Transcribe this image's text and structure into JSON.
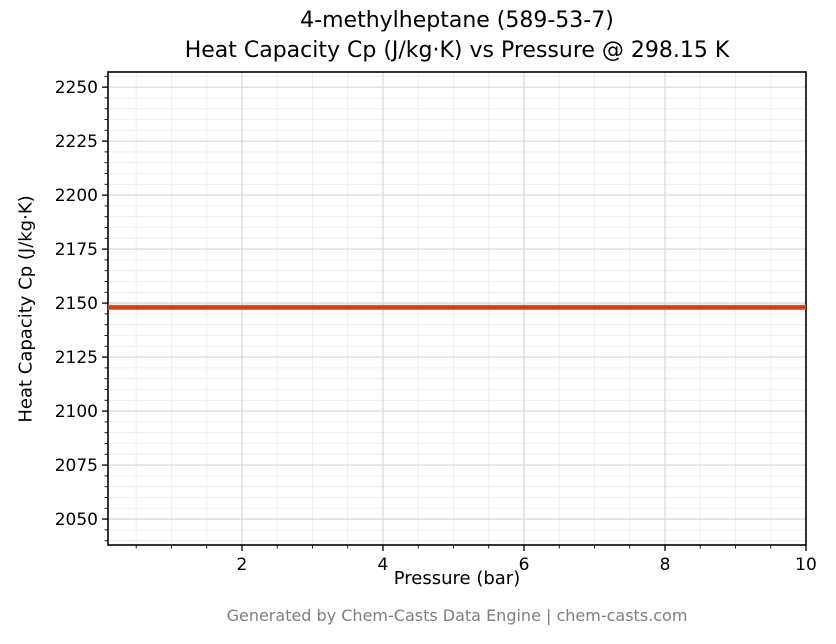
{
  "title_line1": "4-methylheptane (589-53-7)",
  "title_line2": "Heat Capacity Cp (J/kg·K) vs Pressure @ 298.15 K",
  "footer": "Generated by Chem-Casts Data Engine | chem-casts.com",
  "chart_data": {
    "type": "line",
    "title": "4-methylheptane (589-53-7)\nHeat Capacity Cp (J/kg·K) vs Pressure @ 298.15 K",
    "xlabel": "Pressure (bar)",
    "ylabel": "Heat Capacity Cp (J/kg·K)",
    "xlim": [
      0.1,
      10
    ],
    "ylim": [
      2038,
      2257
    ],
    "x_ticks": [
      2,
      4,
      6,
      8,
      10
    ],
    "y_ticks": [
      2050,
      2075,
      2100,
      2125,
      2150,
      2175,
      2200,
      2225,
      2250
    ],
    "x_minor_step": 0.5,
    "y_minor_step": 5,
    "grid": true,
    "legend": "none",
    "series": [
      {
        "name": "Heat Capacity Cp",
        "x": [
          0.1,
          10
        ],
        "y": [
          2148,
          2148
        ],
        "color": "#d4572a",
        "edge_color": "#b23f1d",
        "width": 5
      }
    ],
    "colors": {
      "major_grid": "#d3d3d3",
      "minor_grid": "#ececec",
      "axis": "#000000",
      "background": "#ffffff"
    }
  }
}
